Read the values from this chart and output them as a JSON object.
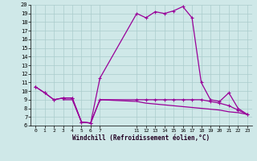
{
  "xlabel": "Windchill (Refroidissement éolien,°C)",
  "bg_color": "#cfe8e8",
  "grid_color": "#aacccc",
  "line_color": "#990099",
  "line_color2": "#660066",
  "hours_main": [
    0,
    1,
    2,
    3,
    4,
    5,
    6,
    7,
    11,
    12,
    13,
    14,
    15,
    16,
    17,
    18,
    19,
    20,
    21,
    22,
    23
  ],
  "temp_main": [
    10.5,
    9.8,
    9.0,
    9.2,
    9.2,
    6.4,
    6.3,
    11.5,
    19.0,
    18.5,
    19.2,
    19.0,
    19.3,
    19.8,
    18.5,
    11.0,
    9.0,
    8.8,
    9.8,
    8.0,
    7.3
  ],
  "hours_wc1": [
    0,
    1,
    2,
    3,
    4,
    5,
    6,
    7,
    11,
    12,
    13,
    14,
    15,
    16,
    17,
    18,
    19,
    20,
    21,
    22,
    23
  ],
  "wc1": [
    10.5,
    9.8,
    9.0,
    9.2,
    9.2,
    6.4,
    6.3,
    9.0,
    9.0,
    9.0,
    9.0,
    9.0,
    9.0,
    9.0,
    9.0,
    9.0,
    8.8,
    8.6,
    8.3,
    7.8,
    7.3
  ],
  "hours_wc2": [
    3,
    4,
    5,
    6,
    7,
    11,
    12,
    13,
    14,
    15,
    16,
    17,
    18,
    19,
    20,
    21,
    22,
    23
  ],
  "wc2": [
    9.0,
    9.0,
    6.4,
    6.3,
    9.0,
    8.8,
    8.6,
    8.5,
    8.4,
    8.3,
    8.2,
    8.1,
    8.0,
    7.9,
    7.8,
    7.6,
    7.5,
    7.3
  ],
  "ylim": [
    6,
    20
  ],
  "xlim": [
    -0.5,
    23.5
  ],
  "yticks": [
    6,
    7,
    8,
    9,
    10,
    11,
    12,
    13,
    14,
    15,
    16,
    17,
    18,
    19,
    20
  ],
  "xtick_pos": [
    0,
    1,
    2,
    3,
    4,
    5,
    6,
    7,
    11,
    12,
    13,
    14,
    15,
    16,
    17,
    18,
    19,
    20,
    21,
    22,
    23
  ],
  "xtick_labels": [
    "0",
    "1",
    "2",
    "3",
    "4",
    "5",
    "6",
    "7",
    "11",
    "12",
    "13",
    "14",
    "15",
    "16",
    "17",
    "18",
    "19",
    "20",
    "21",
    "22",
    "23"
  ]
}
